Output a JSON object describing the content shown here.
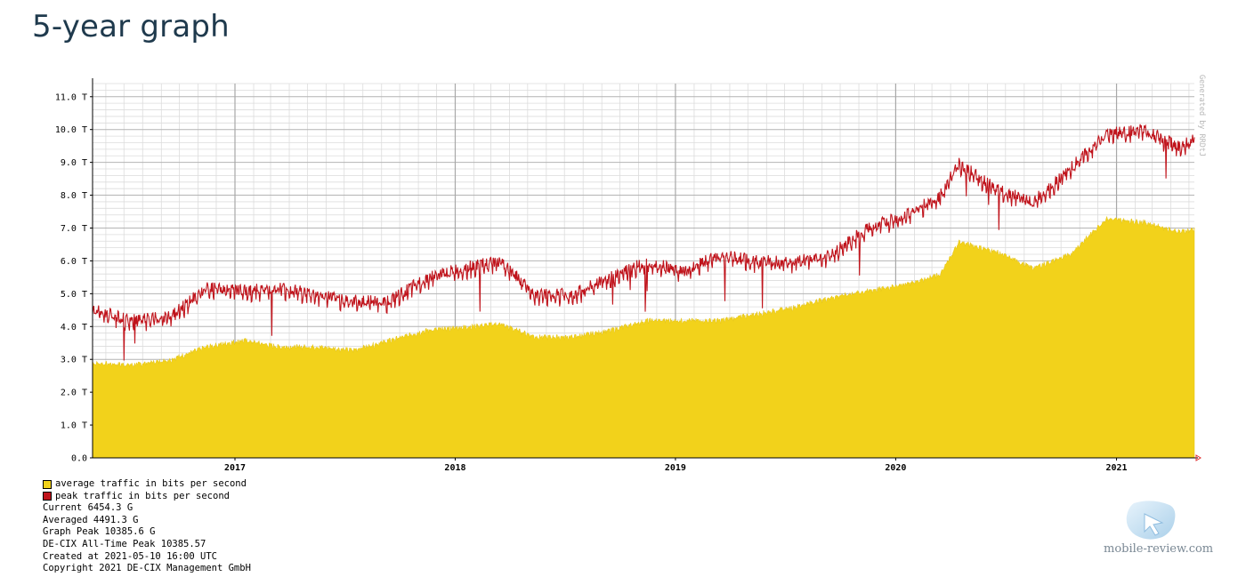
{
  "page": {
    "title": "5-year graph"
  },
  "chart_data": {
    "type": "area",
    "title": "",
    "xlabel": "",
    "ylabel": "",
    "x_range": [
      "2016-05-10",
      "2021-05-10"
    ],
    "x_ticks": [
      "2017",
      "2018",
      "2019",
      "2020",
      "2021"
    ],
    "y_ticks": [
      "0.0",
      "1.0 T",
      "2.0 T",
      "3.0 T",
      "4.0 T",
      "5.0 T",
      "6.0 T",
      "7.0 T",
      "8.0 T",
      "9.0 T",
      "10.0 T",
      "11.0 T"
    ],
    "ylim": [
      0,
      11.4
    ],
    "y_unit": "T",
    "grid": true,
    "generated_by": "Generated by RRDtJ",
    "series": [
      {
        "name": "average traffic in bits per second",
        "color": "#f2d21b",
        "style": "filled-bars",
        "x": [
          "2016-05",
          "2016-07",
          "2016-09",
          "2016-11",
          "2017-01",
          "2017-03",
          "2017-05",
          "2017-07",
          "2017-09",
          "2017-11",
          "2018-01",
          "2018-03",
          "2018-05",
          "2018-07",
          "2018-09",
          "2018-11",
          "2019-01",
          "2019-03",
          "2019-05",
          "2019-07",
          "2019-09",
          "2019-11",
          "2020-01",
          "2020-03",
          "2020-04",
          "2020-06",
          "2020-08",
          "2020-10",
          "2020-12",
          "2021-02",
          "2021-04",
          "2021-05"
        ],
        "values": [
          2.9,
          2.85,
          3.0,
          3.4,
          3.6,
          3.4,
          3.4,
          3.3,
          3.6,
          3.9,
          4.0,
          4.1,
          3.7,
          3.7,
          3.9,
          4.2,
          4.2,
          4.2,
          4.4,
          4.6,
          4.9,
          5.1,
          5.3,
          5.6,
          6.6,
          6.3,
          5.8,
          6.2,
          7.3,
          7.2,
          6.9,
          7.0
        ]
      },
      {
        "name": "peak traffic in bits per second",
        "color": "#c0141c",
        "style": "line",
        "x": [
          "2016-05",
          "2016-07",
          "2016-09",
          "2016-11",
          "2017-01",
          "2017-03",
          "2017-05",
          "2017-07",
          "2017-09",
          "2017-11",
          "2018-01",
          "2018-03",
          "2018-05",
          "2018-07",
          "2018-09",
          "2018-11",
          "2019-01",
          "2019-03",
          "2019-05",
          "2019-07",
          "2019-09",
          "2019-11",
          "2020-01",
          "2020-03",
          "2020-04",
          "2020-06",
          "2020-08",
          "2020-10",
          "2020-12",
          "2021-02",
          "2021-04",
          "2021-05"
        ],
        "values": [
          4.5,
          4.2,
          4.3,
          5.2,
          5.1,
          5.2,
          5.0,
          4.8,
          4.8,
          5.5,
          5.8,
          6.0,
          5.0,
          5.0,
          5.5,
          6.0,
          5.7,
          6.2,
          6.0,
          6.0,
          6.2,
          7.0,
          7.4,
          8.0,
          9.0,
          8.2,
          7.8,
          8.8,
          9.9,
          10.0,
          9.5,
          9.8
        ]
      }
    ]
  },
  "legend": {
    "items": [
      {
        "label": "average traffic in bits per second",
        "color": "#f2d21b"
      },
      {
        "label": "peak traffic in bits per second",
        "color": "#c0141c"
      }
    ],
    "stats": [
      "Current 6454.3 G",
      "Averaged 4491.3 G",
      "Graph Peak 10385.6 G",
      "DE-CIX All-Time Peak 10385.57",
      "Created at 2021-05-10 16:00 UTC",
      "Copyright 2021 DE-CIX Management GmbH"
    ]
  },
  "watermark": {
    "text": "mobile-review.com"
  }
}
